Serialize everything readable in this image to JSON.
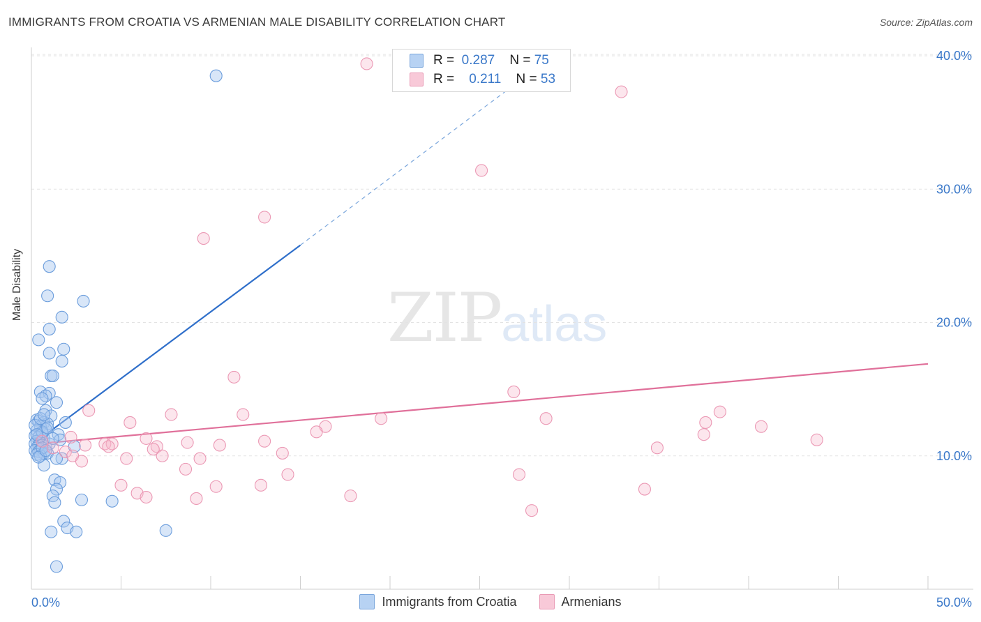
{
  "title": "IMMIGRANTS FROM CROATIA VS ARMENIAN MALE DISABILITY CORRELATION CHART",
  "source": "Source: ZipAtlas.com",
  "watermark": {
    "zip": "ZIP",
    "atlas": "atlas"
  },
  "legend": {
    "rows": [
      {
        "r_label": "R =",
        "r_value": "0.287",
        "n_label": "N =",
        "n_value": "75"
      },
      {
        "r_label": "R =",
        "r_value": "0.211",
        "n_label": "N =",
        "n_value": "53"
      }
    ]
  },
  "colors": {
    "blue": "#3a78c9",
    "blue_fill": "#a9c8f0",
    "pink": "#e0709a",
    "pink_fill": "#f5b8cc"
  },
  "chart_data": {
    "type": "scatter",
    "title": "IMMIGRANTS FROM CROATIA VS ARMENIAN MALE DISABILITY CORRELATION CHART",
    "xlabel": "",
    "ylabel": "Male Disability",
    "xlim": [
      0,
      50
    ],
    "ylim": [
      0,
      40
    ],
    "x_ticks": [
      "0.0%",
      "50.0%"
    ],
    "y_ticks": [
      {
        "value": 10,
        "label": "10.0%"
      },
      {
        "value": 20,
        "label": "20.0%"
      },
      {
        "value": 30,
        "label": "30.0%"
      },
      {
        "value": 40,
        "label": "40.0%"
      }
    ],
    "grid": true,
    "legend_position": "bottom",
    "series": [
      {
        "name": "Immigrants from Croatia",
        "color": "#3a78c9",
        "trend": {
          "x1": 0.3,
          "y1": 11.1,
          "x2": 15,
          "y2": 25.8,
          "x_dash_end": 27.5,
          "y_dash_end": 38.4
        },
        "points": [
          [
            10.3,
            38.5
          ],
          [
            1.0,
            24.2
          ],
          [
            0.9,
            22.0
          ],
          [
            2.9,
            21.6
          ],
          [
            1.7,
            20.4
          ],
          [
            1.0,
            19.5
          ],
          [
            0.4,
            18.7
          ],
          [
            1.8,
            18.0
          ],
          [
            1.0,
            17.7
          ],
          [
            1.7,
            17.1
          ],
          [
            1.1,
            16.0
          ],
          [
            1.2,
            16.0
          ],
          [
            0.5,
            14.8
          ],
          [
            1.0,
            14.7
          ],
          [
            0.8,
            14.5
          ],
          [
            0.6,
            14.3
          ],
          [
            1.4,
            14.0
          ],
          [
            0.8,
            13.4
          ],
          [
            1.1,
            13.0
          ],
          [
            0.3,
            12.7
          ],
          [
            0.4,
            12.6
          ],
          [
            0.7,
            12.5
          ],
          [
            0.9,
            12.4
          ],
          [
            1.9,
            12.5
          ],
          [
            0.5,
            12.2
          ],
          [
            0.8,
            12.0
          ],
          [
            0.3,
            11.9
          ],
          [
            0.6,
            11.7
          ],
          [
            1.5,
            11.6
          ],
          [
            0.2,
            11.5
          ],
          [
            0.4,
            11.4
          ],
          [
            0.7,
            11.3
          ],
          [
            1.6,
            11.2
          ],
          [
            0.3,
            11.1
          ],
          [
            0.5,
            11.0
          ],
          [
            0.2,
            10.9
          ],
          [
            0.4,
            10.8
          ],
          [
            0.6,
            10.8
          ],
          [
            0.8,
            10.7
          ],
          [
            0.3,
            10.6
          ],
          [
            0.5,
            10.5
          ],
          [
            0.2,
            10.4
          ],
          [
            0.4,
            10.3
          ],
          [
            0.7,
            10.2
          ],
          [
            0.9,
            10.2
          ],
          [
            0.3,
            10.1
          ],
          [
            0.5,
            10.0
          ],
          [
            1.7,
            9.8
          ],
          [
            1.4,
            9.8
          ],
          [
            0.7,
            9.3
          ],
          [
            2.4,
            10.7
          ],
          [
            1.3,
            8.2
          ],
          [
            1.6,
            8.0
          ],
          [
            1.4,
            7.5
          ],
          [
            1.2,
            7.0
          ],
          [
            2.8,
            6.7
          ],
          [
            4.5,
            6.6
          ],
          [
            1.3,
            6.5
          ],
          [
            1.8,
            5.1
          ],
          [
            2.0,
            4.6
          ],
          [
            1.1,
            4.3
          ],
          [
            2.5,
            4.3
          ],
          [
            7.5,
            4.4
          ],
          [
            1.4,
            1.7
          ],
          [
            0.6,
            11.8
          ],
          [
            0.9,
            12.1
          ],
          [
            0.2,
            12.3
          ],
          [
            1.0,
            10.9
          ],
          [
            0.6,
            10.6
          ],
          [
            1.2,
            11.3
          ],
          [
            0.4,
            9.9
          ],
          [
            0.8,
            10.4
          ],
          [
            0.3,
            11.6
          ],
          [
            0.5,
            12.8
          ],
          [
            0.7,
            13.1
          ]
        ]
      },
      {
        "name": "Armenians",
        "color": "#e0709a",
        "trend": {
          "x1": 0.3,
          "y1": 10.9,
          "x2": 50,
          "y2": 16.9
        },
        "points": [
          [
            18.7,
            39.4
          ],
          [
            32.9,
            37.3
          ],
          [
            25.1,
            31.4
          ],
          [
            13.0,
            27.9
          ],
          [
            9.6,
            26.3
          ],
          [
            11.3,
            15.9
          ],
          [
            26.9,
            14.8
          ],
          [
            3.2,
            13.4
          ],
          [
            7.8,
            13.1
          ],
          [
            11.8,
            13.1
          ],
          [
            19.5,
            12.8
          ],
          [
            28.7,
            12.8
          ],
          [
            37.6,
            12.5
          ],
          [
            38.4,
            13.3
          ],
          [
            40.7,
            12.2
          ],
          [
            16.4,
            12.2
          ],
          [
            15.9,
            11.8
          ],
          [
            37.5,
            11.6
          ],
          [
            43.8,
            11.2
          ],
          [
            5.5,
            12.5
          ],
          [
            2.2,
            11.4
          ],
          [
            6.4,
            11.3
          ],
          [
            13.0,
            11.1
          ],
          [
            8.7,
            11.0
          ],
          [
            10.5,
            10.8
          ],
          [
            4.1,
            10.9
          ],
          [
            4.5,
            10.9
          ],
          [
            7.0,
            10.7
          ],
          [
            4.3,
            10.7
          ],
          [
            34.9,
            10.6
          ],
          [
            1.9,
            10.3
          ],
          [
            14.0,
            10.2
          ],
          [
            2.3,
            10.0
          ],
          [
            7.3,
            10.0
          ],
          [
            5.3,
            9.8
          ],
          [
            9.4,
            9.8
          ],
          [
            8.6,
            9.0
          ],
          [
            14.3,
            8.6
          ],
          [
            27.2,
            8.6
          ],
          [
            5.0,
            7.8
          ],
          [
            10.3,
            7.7
          ],
          [
            12.8,
            7.8
          ],
          [
            5.9,
            7.2
          ],
          [
            17.8,
            7.0
          ],
          [
            6.4,
            6.9
          ],
          [
            9.2,
            6.8
          ],
          [
            34.2,
            7.5
          ],
          [
            27.9,
            5.9
          ],
          [
            1.2,
            10.6
          ],
          [
            0.6,
            11.1
          ],
          [
            3.0,
            10.8
          ],
          [
            6.8,
            10.5
          ],
          [
            2.8,
            9.6
          ]
        ]
      }
    ]
  }
}
